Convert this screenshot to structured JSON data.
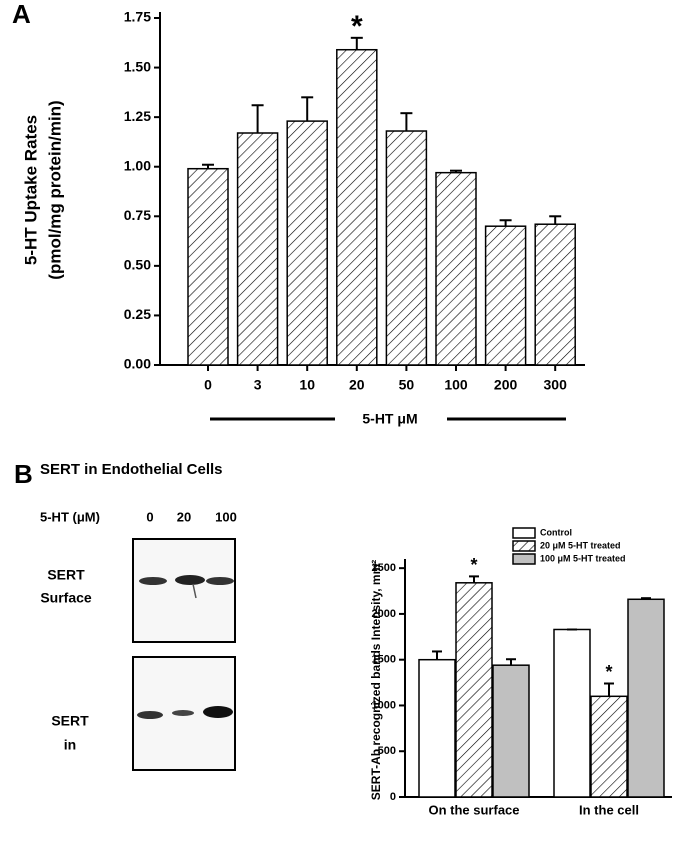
{
  "chart_data": [
    {
      "type": "bar",
      "panel_label": "A",
      "y_label": [
        "5-HT Uptake Rates",
        "(pmol/mg protein/min)"
      ],
      "x_label": "5-HT  μM",
      "categories": [
        "0",
        "3",
        "10",
        "20",
        "50",
        "100",
        "200",
        "300"
      ],
      "values": [
        0.99,
        1.17,
        1.23,
        1.59,
        1.18,
        0.97,
        0.7,
        0.71
      ],
      "errors": [
        0.02,
        0.14,
        0.12,
        0.06,
        0.09,
        0.01,
        0.03,
        0.04
      ],
      "color": "#ffffff",
      "fill_pattern": "diagonal-hatch",
      "ylim": [
        0,
        1.75
      ],
      "yticks": [
        {
          "value": 0,
          "label": "0.00"
        },
        {
          "value": 0.25,
          "label": "0.25"
        },
        {
          "value": 0.5,
          "label": "0.50"
        },
        {
          "value": 0.75,
          "label": "0.75"
        },
        {
          "value": 1,
          "label": "1.00"
        },
        {
          "value": 1.25,
          "label": "1.25"
        },
        {
          "value": 1.5,
          "label": "1.50"
        },
        {
          "value": 1.75,
          "label": "1.75"
        }
      ],
      "annotations": [
        {
          "text": "*",
          "x": "20"
        }
      ]
    },
    {
      "type": "grouped-bar",
      "y_label": "SERT-Ab recognized bands Intensity, mm²",
      "categories": [
        "On the surface",
        "In the cell"
      ],
      "series": [
        {
          "name": "Control",
          "color": "#ffffff",
          "values": [
            1500,
            1830
          ],
          "errors": [
            90,
            0
          ]
        },
        {
          "name": "20 μM 5-HT treated",
          "color": "#ffffff",
          "fill_pattern": "diagonal-hatch",
          "values": [
            2340,
            1100
          ],
          "errors": [
            70,
            140
          ]
        },
        {
          "name": "100 μM 5-HT treated",
          "color": "#c0c0c0",
          "values": [
            1440,
            2160
          ],
          "errors": [
            65,
            12
          ]
        }
      ],
      "ylim": [
        0,
        2600
      ],
      "yticks": [
        0,
        500,
        1000,
        1500,
        2000,
        2500
      ],
      "legend": "top right",
      "annotations": [
        {
          "text": "*",
          "x": "On the surface",
          "series": "20 μM 5-HT treated"
        },
        {
          "text": "*",
          "x": "In the cell",
          "series": "20 μM 5-HT treated"
        }
      ]
    }
  ],
  "panel_b": {
    "label": "B",
    "title": "SERT in Endothelial Cells",
    "dose_label": "5-HT (μM)",
    "doses": [
      "0",
      "20",
      "100"
    ],
    "blots": [
      {
        "label": [
          "SERT",
          "Surface"
        ]
      },
      {
        "label": [
          "SERT",
          "in"
        ]
      }
    ]
  }
}
